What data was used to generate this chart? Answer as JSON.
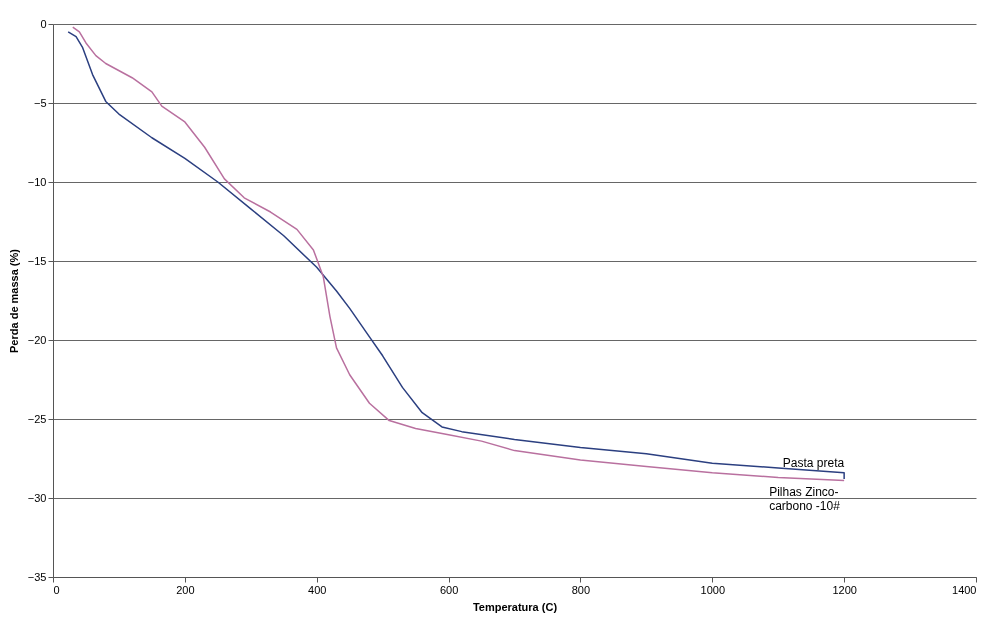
{
  "chart_data": {
    "type": "line",
    "xlabel": "Temperatura (C)",
    "ylabel": "Perda de massa (%)",
    "xlim": [
      0,
      1400
    ],
    "xticks": [
      0,
      200,
      400,
      600,
      800,
      1000,
      1200,
      1400
    ],
    "ylim": [
      -35,
      0
    ],
    "yticks": [
      -35,
      -30,
      -25,
      -20,
      -15,
      -10,
      -5,
      0
    ],
    "grid": "y",
    "marker": "none",
    "line_style": "solid",
    "series": [
      {
        "name": "Pasta preta",
        "color": "#2b3f80",
        "x": [
          23,
          35,
          45,
          60,
          80,
          100,
          150,
          200,
          250,
          300,
          350,
          400,
          430,
          450,
          480,
          500,
          530,
          560,
          590,
          620,
          700,
          800,
          900,
          1000,
          1100,
          1200,
          1200
        ],
        "values": [
          -0.5,
          -0.8,
          -1.5,
          -3.2,
          -4.9,
          -5.7,
          -7.2,
          -8.5,
          -10.0,
          -11.7,
          -13.4,
          -15.4,
          -16.9,
          -18.0,
          -19.8,
          -21.0,
          -23.0,
          -24.6,
          -25.5,
          -25.8,
          -26.3,
          -26.8,
          -27.2,
          -27.8,
          -28.1,
          -28.4,
          -28.8
        ]
      },
      {
        "name": "Pilhas Zinco-carbono -10#",
        "color": "#b9709f",
        "x": [
          30,
          40,
          50,
          65,
          80,
          120,
          150,
          165,
          200,
          230,
          260,
          290,
          330,
          370,
          395,
          410,
          420,
          430,
          450,
          480,
          510,
          550,
          600,
          650,
          700,
          800,
          900,
          1000,
          1100,
          1200
        ],
        "values": [
          -0.2,
          -0.5,
          -1.2,
          -2.0,
          -2.5,
          -3.4,
          -4.3,
          -5.2,
          -6.2,
          -7.8,
          -9.8,
          -11.0,
          -11.9,
          -13.0,
          -14.3,
          -16.0,
          -18.5,
          -20.5,
          -22.2,
          -24.0,
          -25.1,
          -25.6,
          -26.0,
          -26.4,
          -27.0,
          -27.6,
          -28.0,
          -28.4,
          -28.7,
          -28.9
        ]
      }
    ]
  }
}
